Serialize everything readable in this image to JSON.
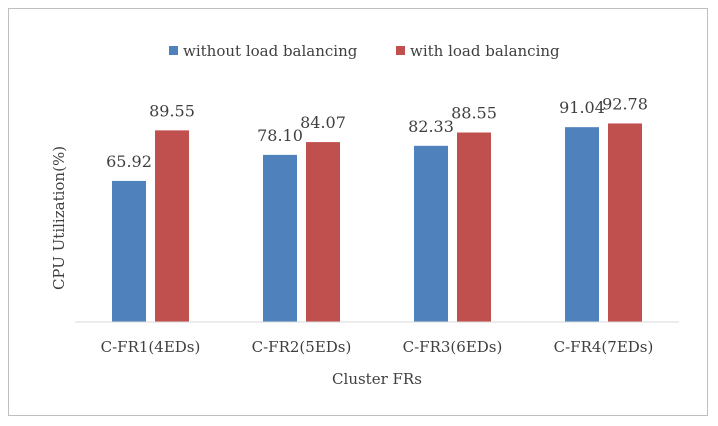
{
  "chart_data": {
    "type": "bar",
    "title": "",
    "xlabel": "Cluster FRs",
    "ylabel": "CPU Utilization(%)",
    "ylim": [
      0,
      100
    ],
    "grid": false,
    "legend_position": "top",
    "categories": [
      "C-FR1(4EDs)",
      "C-FR2(5EDs)",
      "C-FR3(6EDs)",
      "C-FR4(7EDs)"
    ],
    "series": [
      {
        "name": "without load balancing",
        "color": "#4f81bd",
        "values": [
          65.92,
          78.1,
          82.33,
          91.04
        ],
        "labels": [
          "65.92",
          "78.10",
          "82.33",
          "91.04"
        ]
      },
      {
        "name": "with load balancing",
        "color": "#c0504d",
        "values": [
          89.55,
          84.07,
          88.55,
          92.78
        ],
        "labels": [
          "89.55",
          "84.07",
          "88.55",
          "92.78"
        ]
      }
    ]
  }
}
